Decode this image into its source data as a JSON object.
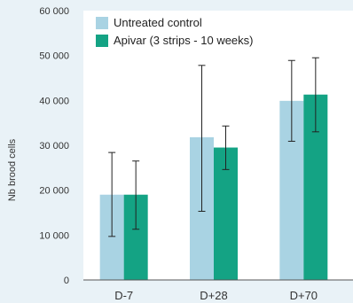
{
  "chart_data": {
    "type": "bar",
    "title": "",
    "xlabel": "",
    "ylabel": "Nb brood cells",
    "categories": [
      "D-7",
      "D+28",
      "D+70"
    ],
    "ylim": [
      0,
      60000
    ],
    "yticks": [
      0,
      10000,
      20000,
      30000,
      40000,
      50000,
      60000
    ],
    "ytick_labels": [
      "0",
      "10 000",
      "20 000",
      "30 000",
      "40 000",
      "50 000",
      "60 000"
    ],
    "series": [
      {
        "name": "Untreated control",
        "color": "#a9d3e3",
        "values": [
          19000,
          31800,
          39900
        ],
        "err_low": [
          9700,
          15300,
          30900
        ],
        "err_high": [
          28400,
          47800,
          48900
        ]
      },
      {
        "name": "Apivar (3 strips - 10 weeks)",
        "color": "#14a384",
        "values": [
          19000,
          29500,
          41300
        ],
        "err_low": [
          11300,
          24600,
          33000
        ],
        "err_high": [
          26500,
          34300,
          49500
        ]
      }
    ],
    "legend": "top-left",
    "grid": false
  }
}
